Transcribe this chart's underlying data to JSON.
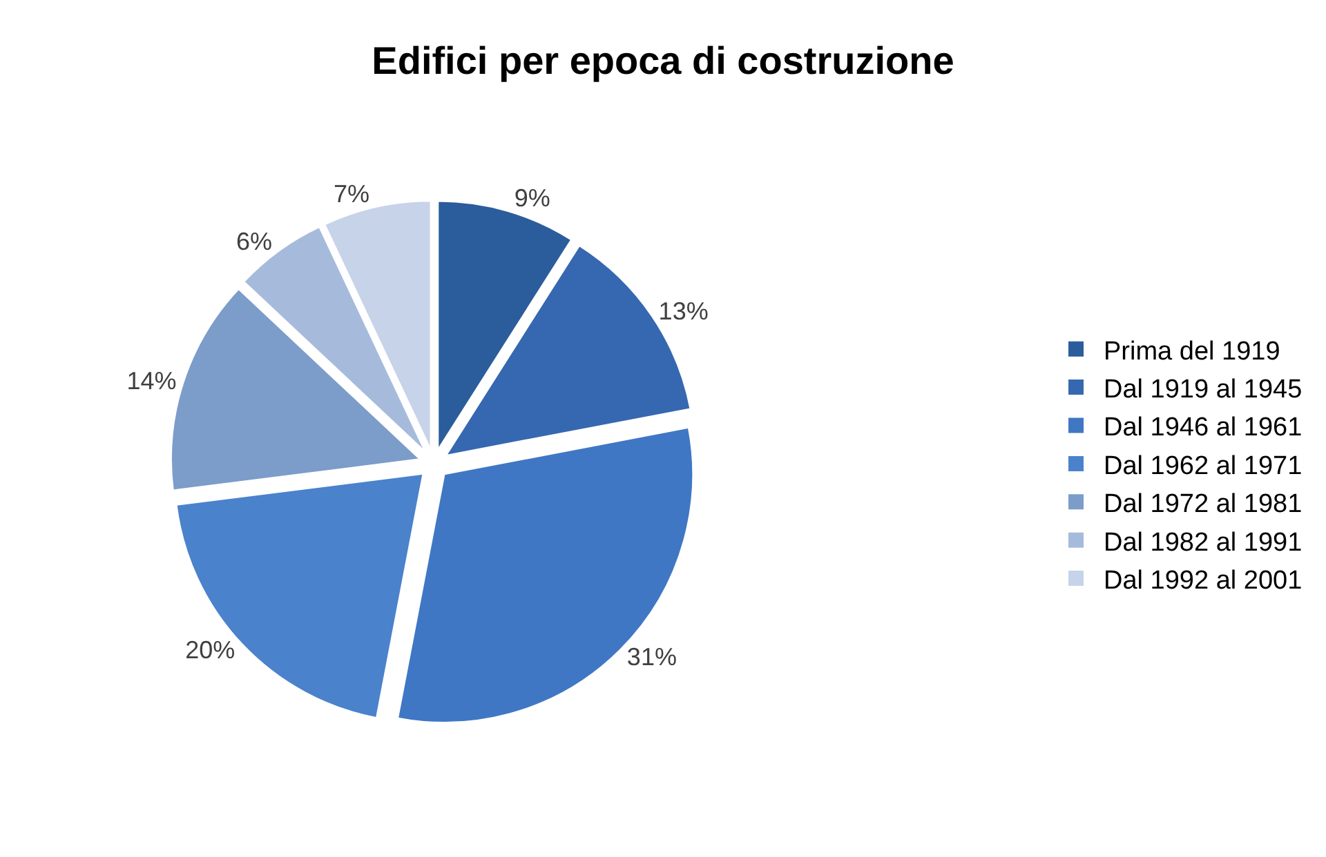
{
  "chart_data": {
    "type": "pie",
    "title": "Edifici per epoca di costruzione",
    "categories": [
      "Prima del 1919",
      "Dal 1919 al 1945",
      "Dal 1946 al 1961",
      "Dal 1962 al 1971",
      "Dal 1972 al 1981",
      "Dal 1982 al 1991",
      "Dal 1992 al 2001"
    ],
    "values": [
      9,
      13,
      31,
      20,
      14,
      6,
      7
    ],
    "value_labels": [
      "9%",
      "13%",
      "31%",
      "20%",
      "14%",
      "6%",
      "7%"
    ],
    "colors": [
      "#2b5d9c",
      "#3568b0",
      "#3f77c4",
      "#4a82cc",
      "#7c9cca",
      "#a6bbdc",
      "#c6d3e9"
    ],
    "legend": "right"
  }
}
